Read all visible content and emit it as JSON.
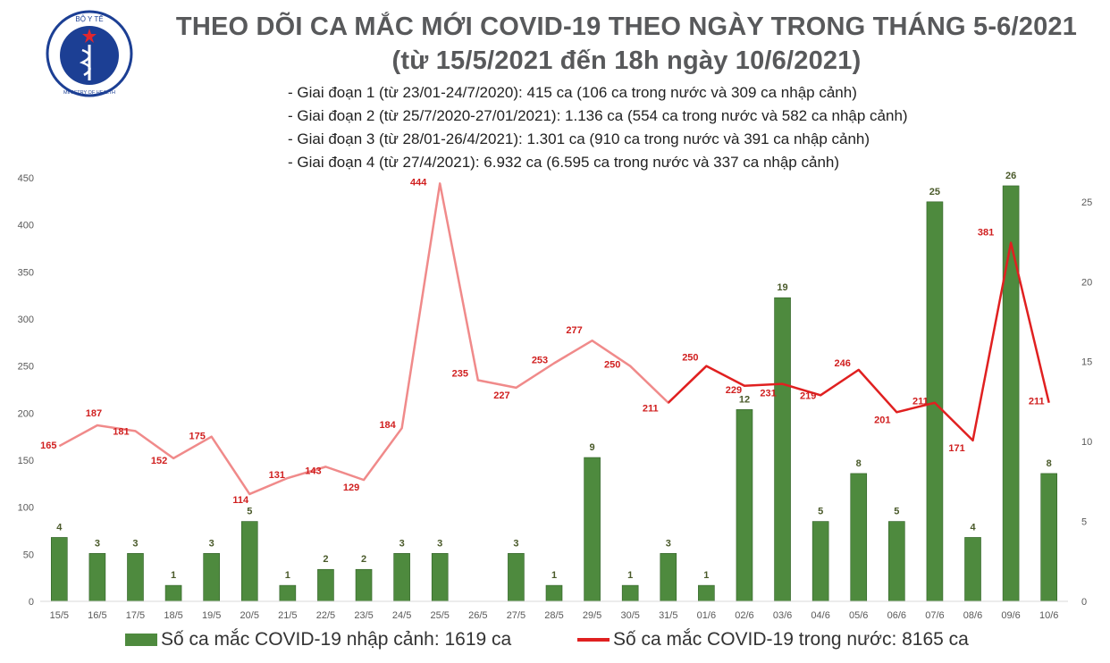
{
  "header": {
    "title_line1": "THEO DÕI CA MẮC MỚI COVID-19 THEO NGÀY TRONG THÁNG 5-6/2021",
    "title_line2": "(từ 15/5/2021 đến 18h ngày 10/6/2021)",
    "stages": [
      "- Giai đoạn 1 (từ 23/01-24/7/2020): 415 ca (106 ca trong nước và 309 ca nhập cảnh)",
      "- Giai đoạn 2 (từ 25/7/2020-27/01/2021): 1.136 ca (554 ca trong nước và 582 ca nhập cảnh)",
      "- Giai đoạn 3 (từ 28/01-26/4/2021): 1.301 ca (910 ca trong nước và 391 ca nhập cảnh)",
      "- Giai đoạn 4 (từ 27/4/2021): 6.932 ca (6.595 ca trong nước và 337 ca nhập cảnh)"
    ]
  },
  "logo": {
    "icon": "ministry-of-health-emblem-icon",
    "text_top": "BỘ Y TẾ",
    "text_bottom": "MINISTRY OF HEALTH",
    "color_ring": "#1c3f94",
    "color_star": "#e3262d"
  },
  "chart_data": {
    "type": "bar+line",
    "categories": [
      "15/5",
      "16/5",
      "17/5",
      "18/5",
      "19/5",
      "20/5",
      "21/5",
      "22/5",
      "23/5",
      "24/5",
      "25/5",
      "26/5",
      "27/5",
      "28/5",
      "29/5",
      "30/5",
      "31/5",
      "01/6",
      "02/6",
      "03/6",
      "04/6",
      "05/6",
      "06/6",
      "07/6",
      "08/6",
      "09/6",
      "10/6"
    ],
    "series": [
      {
        "name": "Số ca mắc COVID-19 nhập cảnh: 1619 ca",
        "type": "bar",
        "axis": "right",
        "color": "#4e8a3e",
        "values": [
          4,
          3,
          3,
          1,
          3,
          5,
          1,
          2,
          2,
          3,
          3,
          null,
          3,
          1,
          9,
          1,
          3,
          1,
          12,
          19,
          5,
          8,
          5,
          25,
          4,
          26,
          8
        ]
      },
      {
        "name": "Số ca mắc COVID-19 trong nước: 8165 ca",
        "type": "line",
        "axis": "left",
        "color": "#e02020",
        "color_light": "#f08a8a",
        "values": [
          165,
          187,
          181,
          152,
          175,
          114,
          131,
          143,
          129,
          184,
          444,
          235,
          227,
          253,
          277,
          250,
          211,
          250,
          229,
          231,
          219,
          246,
          201,
          211,
          171,
          381,
          211
        ]
      }
    ],
    "y_left": {
      "ylim": [
        0,
        450
      ],
      "ticks": [
        0,
        50,
        100,
        150,
        200,
        250,
        300,
        350,
        400,
        450
      ]
    },
    "y_right": {
      "ylim": [
        0,
        26.5
      ],
      "ticks": [
        0,
        5,
        10,
        15,
        20,
        25
      ]
    },
    "grid": false,
    "legend_position": "bottom"
  }
}
